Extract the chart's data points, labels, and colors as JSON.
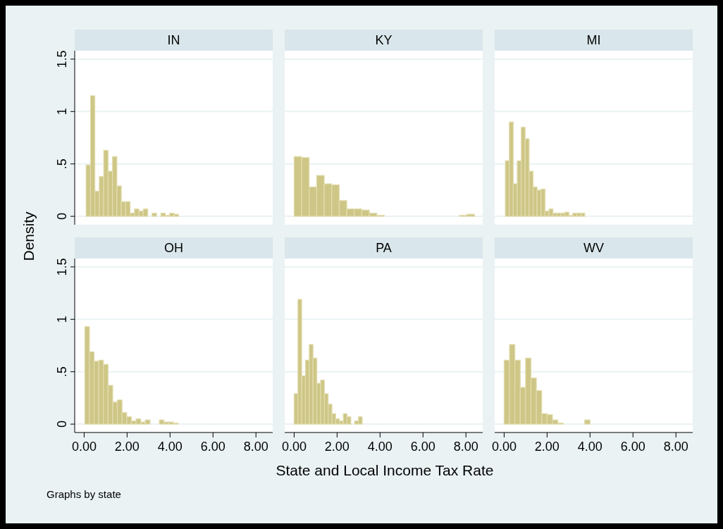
{
  "chart_data": [
    {
      "type": "histogram",
      "title": "IN",
      "ylabel": "Density",
      "bins": [
        0.09,
        0.295,
        0.5,
        0.705,
        0.91,
        1.115,
        1.32,
        1.525,
        1.73,
        1.935,
        2.14,
        2.345,
        2.55,
        2.755,
        2.96,
        3.165,
        3.37,
        3.575,
        3.78,
        3.985,
        4.19,
        4.395
      ],
      "values": [
        0.49,
        1.15,
        0.24,
        0.38,
        0.63,
        0.43,
        0.57,
        0.29,
        0.14,
        0.14,
        0.03,
        0.07,
        0.05,
        0.07,
        0,
        0.03,
        0,
        0.03,
        0.01,
        0.03,
        0.02
      ],
      "color": "#cec686",
      "xlim": [
        -0.44,
        8.78
      ],
      "ylim": [
        -0.08,
        1.58
      ],
      "yticks": [
        0,
        {
          "value": 0.5,
          "label": ".5"
        },
        1,
        1.5
      ],
      "grid": "y",
      "tick_labels": "y"
    },
    {
      "type": "histogram",
      "title": "KY",
      "bins": [
        0,
        0.35,
        0.7,
        1.05,
        1.4,
        1.75,
        2.1,
        2.45,
        2.8,
        3.15,
        3.5,
        3.85,
        4.2,
        4.55,
        4.9,
        5.25,
        5.6,
        5.95,
        6.3,
        6.65,
        7,
        7.35,
        7.7,
        8.05,
        8.4
      ],
      "values": [
        0.57,
        0.56,
        0.28,
        0.39,
        0.31,
        0.3,
        0.15,
        0.07,
        0.07,
        0.06,
        0.03,
        0.01,
        0,
        0,
        0,
        0,
        0,
        0,
        0,
        0,
        0,
        0,
        0.01,
        0.02
      ],
      "color": "#cec686",
      "xlim": [
        -0.44,
        8.78
      ],
      "ylim": [
        -0.08,
        1.58
      ],
      "yticks": [
        0,
        0.5,
        1,
        1.5
      ],
      "grid": "y",
      "tick_labels": false
    },
    {
      "type": "histogram",
      "title": "MI",
      "bins": [
        0.055,
        0.24,
        0.425,
        0.61,
        0.795,
        0.98,
        1.165,
        1.35,
        1.535,
        1.72,
        1.905,
        2.09,
        2.275,
        2.46,
        2.645,
        2.83,
        3.015,
        3.2,
        3.385,
        3.57,
        3.755
      ],
      "values": [
        0.53,
        0.9,
        0.31,
        0.53,
        0.85,
        0.74,
        0.43,
        0.28,
        0.25,
        0.26,
        0.05,
        0.07,
        0.03,
        0.03,
        0.03,
        0.04,
        0.01,
        0.03,
        0.03,
        0.03
      ],
      "color": "#cec686",
      "xlim": [
        -0.44,
        8.78
      ],
      "ylim": [
        -0.08,
        1.58
      ],
      "yticks": [
        0,
        0.5,
        1,
        1.5
      ],
      "grid": "y",
      "tick_labels": false
    },
    {
      "type": "histogram",
      "title": "OH",
      "annotations": [
        "Graphs by state"
      ],
      "bins": [
        0.03,
        0.247,
        0.464,
        0.681,
        0.898,
        1.115,
        1.332,
        1.549,
        1.766,
        1.983,
        2.2,
        2.417,
        2.634,
        2.851,
        3.068,
        3.285,
        3.502,
        3.719,
        3.936,
        4.153,
        4.37
      ],
      "values": [
        0.93,
        0.69,
        0.6,
        0.61,
        0.57,
        0.37,
        0.21,
        0.23,
        0.11,
        0.07,
        0.03,
        0.05,
        0.02,
        0.04,
        0,
        0,
        0.04,
        0.02,
        0.02,
        0.01
      ],
      "color": "#cec686",
      "xlim": [
        -0.44,
        8.78
      ],
      "xticks": [
        {
          "value": 0,
          "label": "0.00"
        },
        {
          "value": 2,
          "label": "2.00"
        },
        {
          "value": 4,
          "label": "4.00"
        },
        {
          "value": 6,
          "label": "6.00"
        },
        {
          "value": 8,
          "label": "8.00"
        }
      ],
      "ylim": [
        -0.08,
        1.58
      ],
      "yticks": [
        0,
        {
          "value": 0.5,
          "label": ".5"
        },
        1,
        1.5
      ],
      "grid": "y"
    },
    {
      "type": "histogram",
      "title": "PA",
      "xlabel": "State and Local Income Tax Rate",
      "bins": [
        0,
        0.176,
        0.352,
        0.528,
        0.704,
        0.88,
        1.056,
        1.232,
        1.408,
        1.584,
        1.76,
        1.936,
        2.112,
        2.288,
        2.464,
        2.64,
        2.816,
        2.992,
        3.168
      ],
      "values": [
        0.29,
        1.19,
        0.46,
        0.61,
        0.76,
        0.63,
        0.39,
        0.42,
        0.29,
        0.19,
        0.1,
        0.05,
        0.03,
        0.1,
        0.07,
        0,
        0.03,
        0.07
      ],
      "color": "#cec686",
      "xlim": [
        -0.44,
        8.78
      ],
      "xticks": [
        {
          "value": 0,
          "label": "0.00"
        },
        {
          "value": 2,
          "label": "2.00"
        },
        {
          "value": 4,
          "label": "4.00"
        },
        {
          "value": 6,
          "label": "6.00"
        },
        {
          "value": 8,
          "label": "8.00"
        }
      ],
      "ylim": [
        -0.08,
        1.58
      ],
      "yticks": [
        0,
        0.5,
        1,
        1.5
      ],
      "grid": "y",
      "tick_labels": "x"
    },
    {
      "type": "histogram",
      "title": "WV",
      "bins": [
        0,
        0.25,
        0.5,
        0.75,
        1,
        1.25,
        1.5,
        1.75,
        2,
        2.25,
        2.5,
        2.75,
        3,
        3.25,
        3.5,
        3.75,
        4
      ],
      "values": [
        0.61,
        0.76,
        0.61,
        0.35,
        0.63,
        0.44,
        0.32,
        0.1,
        0.09,
        0.04,
        0.01,
        0,
        0,
        0,
        0,
        0.04
      ],
      "color": "#cec686",
      "xlim": [
        -0.44,
        8.78
      ],
      "xticks": [
        {
          "value": 0,
          "label": "0.00"
        },
        {
          "value": 2,
          "label": "2.00"
        },
        {
          "value": 4,
          "label": "4.00"
        },
        {
          "value": 6,
          "label": "6.00"
        },
        {
          "value": 8,
          "label": "8.00"
        }
      ],
      "ylim": [
        -0.08,
        1.58
      ],
      "yticks": [
        0,
        0.5,
        1,
        1.5
      ],
      "grid": "y",
      "tick_labels": "x"
    }
  ]
}
